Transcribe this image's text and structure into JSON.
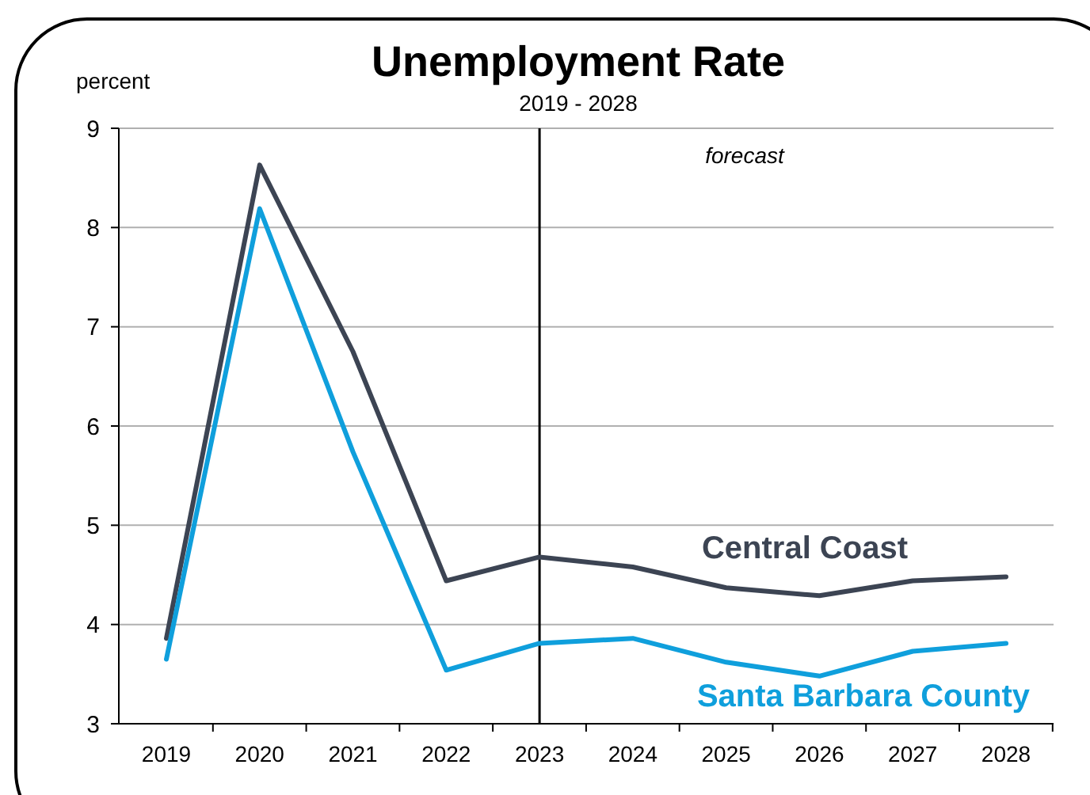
{
  "chart_data": {
    "type": "line",
    "title": "Unemployment Rate",
    "subtitle": "2019 - 2028",
    "ylabel": "percent",
    "categories": [
      "2019",
      "2020",
      "2021",
      "2022",
      "2023",
      "2024",
      "2025",
      "2026",
      "2027",
      "2028"
    ],
    "series": [
      {
        "name": "Central Coast",
        "color": "#3c4453",
        "values": [
          3.86,
          8.63,
          6.75,
          4.44,
          4.68,
          4.58,
          4.37,
          4.29,
          4.44,
          4.48
        ]
      },
      {
        "name": "Santa Barbara County",
        "color": "#0f9fdc",
        "values": [
          3.65,
          8.19,
          5.74,
          3.54,
          3.81,
          3.86,
          3.62,
          3.48,
          3.73,
          3.81
        ]
      }
    ],
    "ylim": [
      3,
      9
    ],
    "yticks": [
      3,
      4,
      5,
      6,
      7,
      8,
      9
    ],
    "grid": "y",
    "ref_lines": [
      {
        "axis": "x",
        "value": "2023",
        "color": "#000000"
      }
    ],
    "annotations": [
      "forecast"
    ]
  }
}
